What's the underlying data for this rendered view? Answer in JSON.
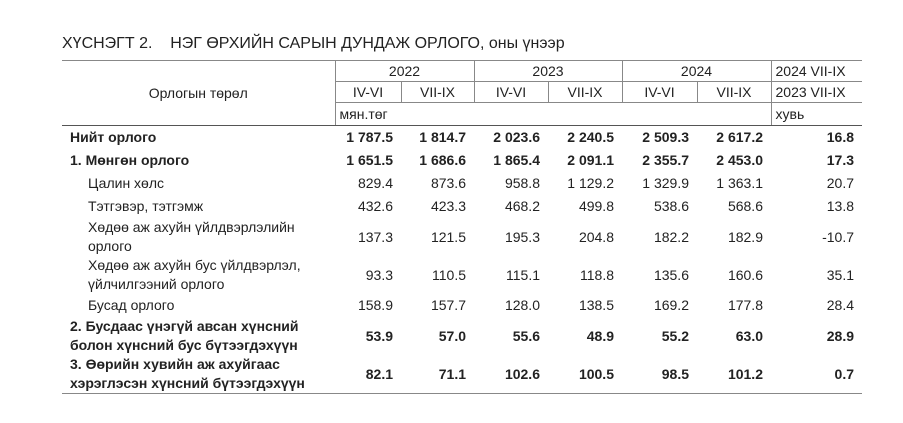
{
  "title": "ХҮСНЭГТ 2.    НЭГ ӨРХИЙН САРЫН ДУНДАЖ ОРЛОГО, оны үнээр",
  "header": {
    "label": "Орлогын төрөл",
    "years": [
      "2022",
      "2023",
      "2024"
    ],
    "periods": [
      "IV-VI",
      "VII-IX",
      "IV-VI",
      "VII-IX",
      "IV-VI",
      "VII-IX"
    ],
    "unit": "мян.төг",
    "last_col": [
      "2024 VII-IX",
      "2023 VII-IX"
    ],
    "last_unit": "хувь"
  },
  "rows": [
    {
      "label": "Нийт орлого",
      "bold": true,
      "indent": false,
      "values": [
        "1 787.5",
        "1 814.7",
        "2 023.6",
        "2 240.5",
        "2 509.3",
        "2 617.2",
        "16.8"
      ]
    },
    {
      "label": "1. Мөнгөн орлого",
      "bold": true,
      "indent": false,
      "values": [
        "1 651.5",
        "1 686.6",
        "1 865.4",
        "2 091.1",
        "2 355.7",
        "2 453.0",
        "17.3"
      ]
    },
    {
      "label": "Цалин хөлс",
      "bold": false,
      "indent": true,
      "values": [
        "829.4",
        "873.6",
        "958.8",
        "1 129.2",
        "1 329.9",
        "1 363.1",
        "20.7"
      ]
    },
    {
      "label": "Тэтгэвэр, тэтгэмж",
      "bold": false,
      "indent": true,
      "values": [
        "432.6",
        "423.3",
        "468.2",
        "499.8",
        "538.6",
        "568.6",
        "13.8"
      ]
    },
    {
      "label": "Хөдөө аж ахуйн үйлдвэрлэлийн\nорлого",
      "bold": false,
      "indent": true,
      "values": [
        "137.3",
        "121.5",
        "195.3",
        "204.8",
        "182.2",
        "182.9",
        "-10.7"
      ]
    },
    {
      "label": "Хөдөө аж ахуйн бус үйлдвэрлэл,\nүйлчилгээний орлого",
      "bold": false,
      "indent": true,
      "values": [
        "93.3",
        "110.5",
        "115.1",
        "118.8",
        "135.6",
        "160.6",
        "35.1"
      ]
    },
    {
      "label": "Бусад орлого",
      "bold": false,
      "indent": true,
      "values": [
        "158.9",
        "157.7",
        "128.0",
        "138.5",
        "169.2",
        "177.8",
        "28.4"
      ]
    },
    {
      "label": "2. Бусдаас үнэгүй авсан хүнсний\nболон хүнсний бус бүтээгдэхүүн",
      "bold": true,
      "indent": false,
      "values": [
        "53.9",
        "57.0",
        "55.6",
        "48.9",
        "55.2",
        "63.0",
        "28.9"
      ]
    },
    {
      "label": "3. Өөрийн хувийн аж ахуйгаас\nхэрэглэсэн хүнсний бүтээгдэхүүн",
      "bold": true,
      "indent": false,
      "values": [
        "82.1",
        "71.1",
        "102.6",
        "100.5",
        "98.5",
        "101.2",
        "0.7"
      ]
    }
  ]
}
